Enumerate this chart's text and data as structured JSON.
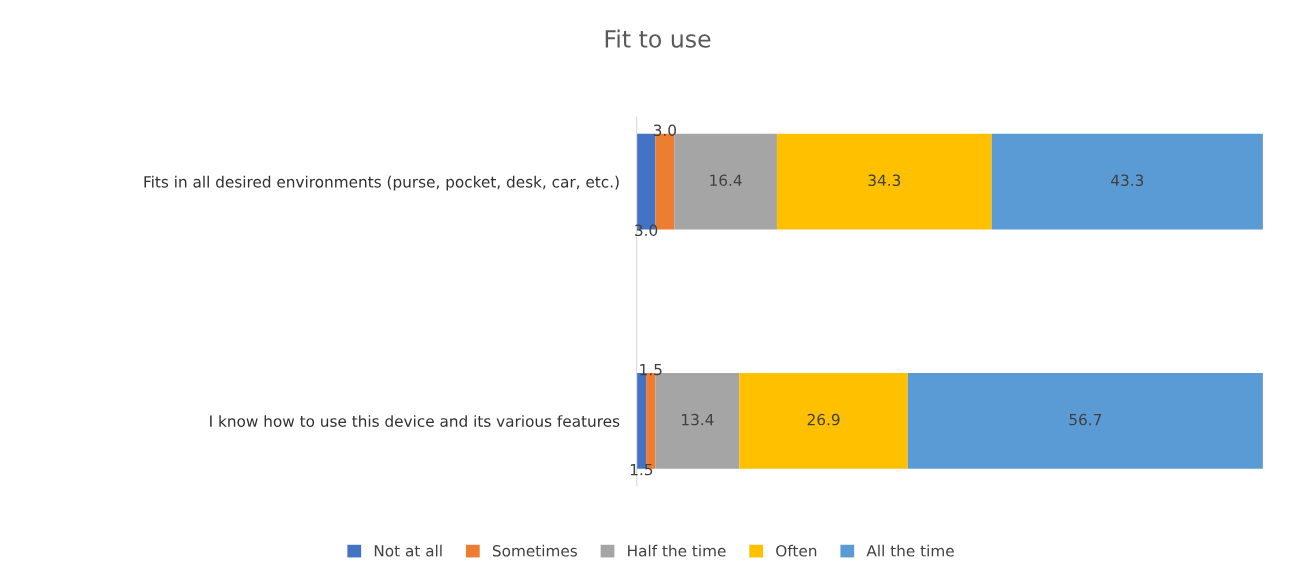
{
  "chart_data": {
    "type": "bar",
    "orientation": "horizontal",
    "stacked": true,
    "title": "Fit to use",
    "categories": [
      "Fits in all desired environments (purse, pocket, desk, car, etc.)",
      "I know how to use this device and its various features"
    ],
    "series": [
      {
        "name": "Not at all",
        "color": "#4472c4",
        "values": [
          3.0,
          1.5
        ],
        "value_labels": [
          "3.0",
          "1.5"
        ]
      },
      {
        "name": "Sometimes",
        "color": "#ed7d31",
        "values": [
          3.0,
          1.5
        ],
        "value_labels": [
          "3.0",
          "1.5"
        ]
      },
      {
        "name": "Half the time",
        "color": "#a5a5a5",
        "values": [
          16.4,
          13.4
        ],
        "value_labels": [
          "16.4",
          "13.4"
        ]
      },
      {
        "name": "Often",
        "color": "#ffc000",
        "values": [
          34.3,
          26.9
        ],
        "value_labels": [
          "34.3",
          "26.9"
        ]
      },
      {
        "name": "All the time",
        "color": "#5b9bd5",
        "values": [
          43.3,
          56.7
        ],
        "value_labels": [
          "43.3",
          "56.7"
        ]
      }
    ],
    "legend": "bottom",
    "tick_labels": "y"
  }
}
